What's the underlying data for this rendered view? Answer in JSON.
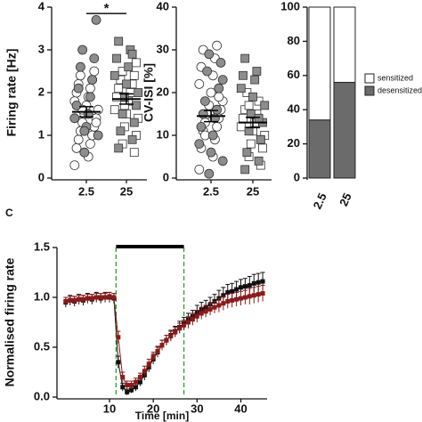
{
  "chart_data": [
    {
      "type": "strip",
      "y_label": "Firing rate [Hz]",
      "categories": [
        "2.5",
        "25"
      ],
      "ylim": [
        0,
        4
      ],
      "yticks": [
        0,
        1,
        2,
        3,
        4
      ],
      "series": [
        {
          "marker": "circle",
          "color": "#ffffff",
          "values": [
            [
              0.3,
              0.5,
              0.7,
              0.8,
              0.9,
              1.0,
              1.1,
              1.2,
              1.3,
              1.4,
              1.5,
              1.6,
              1.7,
              1.8,
              1.9,
              2.0,
              2.1,
              2.2,
              2.3,
              2.4,
              2.5,
              1.6,
              1.3
            ],
            []
          ]
        },
        {
          "marker": "circle",
          "color": "#8c8c8c",
          "values": [
            [
              0.6,
              1.0,
              1.2,
              1.4,
              1.5,
              1.7,
              1.9,
              2.1,
              2.3,
              2.6,
              2.8,
              3.0,
              3.7,
              1.1
            ],
            []
          ]
        },
        {
          "marker": "square",
          "color": "#ffffff",
          "values": [
            [],
            [
              0.6,
              0.8,
              1.0,
              1.2,
              1.4,
              1.5,
              1.6,
              1.8,
              1.9,
              2.0,
              2.1,
              2.2,
              2.3,
              2.4,
              2.5,
              2.7,
              1.7
            ]
          ]
        },
        {
          "marker": "square",
          "color": "#8c8c8c",
          "values": [
            [],
            [
              0.7,
              0.9,
              1.1,
              1.3,
              1.5,
              1.7,
              1.9,
              2.0,
              2.2,
              2.4,
              2.6,
              2.8,
              3.0,
              3.2,
              2.9
            ]
          ]
        }
      ],
      "mean": [
        1.55,
        1.85
      ],
      "sem": [
        0.12,
        0.12
      ],
      "annotation": {
        "text": "*",
        "y": 3.85
      }
    },
    {
      "type": "strip",
      "y_label": "CV-ISI [%]",
      "categories": [
        "2.5",
        "25"
      ],
      "ylim": [
        0,
        40
      ],
      "yticks": [
        0,
        10,
        20,
        30,
        40
      ],
      "series": [
        {
          "marker": "circle",
          "color": "#ffffff",
          "values": [
            [
              2,
              5,
              7,
              9,
              11,
              12,
              13,
              14,
              15,
              16,
              17,
              18,
              20,
              22,
              24,
              26,
              28,
              30,
              31,
              10,
              19
            ],
            []
          ]
        },
        {
          "marker": "circle",
          "color": "#8c8c8c",
          "values": [
            [
              1,
              4,
              6,
              8,
              10,
              12,
              14,
              15,
              16,
              18,
              21,
              25,
              27,
              29,
              23
            ],
            []
          ]
        },
        {
          "marker": "square",
          "color": "#ffffff",
          "values": [
            [],
            [
              3,
              5,
              7,
              8,
              10,
              11,
              12,
              13,
              14,
              15,
              16,
              18,
              20,
              9,
              17
            ]
          ]
        },
        {
          "marker": "square",
          "color": "#8c8c8c",
          "values": [
            [],
            [
              2,
              4,
              6,
              9,
              11,
              13,
              15,
              17,
              19,
              21,
              23,
              24,
              25,
              28,
              14
            ]
          ]
        }
      ],
      "mean": [
        14.5,
        13
      ],
      "sem": [
        1.3,
        1.2
      ]
    },
    {
      "type": "stacked_bar",
      "categories": [
        "2.5",
        "25"
      ],
      "ylim": [
        0,
        100
      ],
      "yticks": [
        0,
        20,
        40,
        60,
        80,
        100
      ],
      "legend": "right",
      "series": [
        {
          "name": "desensitized",
          "color": "#6b6b6b",
          "values": [
            34,
            56
          ]
        },
        {
          "name": "sensitized",
          "color": "#ffffff",
          "values": [
            66,
            44
          ]
        }
      ]
    },
    {
      "type": "line",
      "panel_label": "C",
      "y_label": "Normalised firing rate",
      "x_label": "Time [min]",
      "xlim": [
        -2,
        46
      ],
      "xticks": [
        10,
        20,
        30,
        40
      ],
      "ylim": [
        0,
        1.5
      ],
      "yticks": [
        {
          "value": 0,
          "label": "0.0"
        },
        0.5,
        {
          "value": 1,
          "label": "1.0"
        },
        1.5
      ],
      "interval": {
        "x": [
          11.5,
          27
        ],
        "color": "#2ca02c"
      },
      "x": [
        0,
        1,
        2,
        3,
        4,
        5,
        6,
        7,
        8,
        9,
        10,
        11,
        12,
        13,
        14,
        15,
        16,
        17,
        18,
        19,
        20,
        21,
        22,
        23,
        24,
        25,
        26,
        27,
        28,
        29,
        30,
        31,
        32,
        33,
        34,
        35,
        36,
        37,
        38,
        39,
        40,
        41,
        42,
        43,
        44,
        45
      ],
      "series": [
        {
          "color": "#111111",
          "values": [
            0.95,
            0.97,
            0.96,
            0.98,
            0.97,
            0.99,
            0.98,
            1.0,
            0.99,
            1.0,
            1.0,
            0.99,
            0.35,
            0.1,
            0.05,
            0.07,
            0.1,
            0.15,
            0.22,
            0.3,
            0.38,
            0.45,
            0.52,
            0.57,
            0.62,
            0.66,
            0.7,
            0.74,
            0.78,
            0.81,
            0.85,
            0.88,
            0.9,
            0.93,
            0.96,
            0.99,
            1.02,
            1.05,
            1.06,
            1.08,
            1.1,
            1.11,
            1.12,
            1.14,
            1.15,
            1.16
          ],
          "errors": [
            0.05,
            0.05,
            0.05,
            0.05,
            0.05,
            0.05,
            0.05,
            0.05,
            0.05,
            0.05,
            0.05,
            0.05,
            0.06,
            0.04,
            0.03,
            0.03,
            0.04,
            0.04,
            0.05,
            0.05,
            0.05,
            0.05,
            0.05,
            0.05,
            0.05,
            0.05,
            0.06,
            0.06,
            0.06,
            0.06,
            0.07,
            0.07,
            0.07,
            0.07,
            0.07,
            0.08,
            0.08,
            0.08,
            0.08,
            0.08,
            0.08,
            0.08,
            0.09,
            0.09,
            0.09,
            0.09
          ]
        },
        {
          "color": "#8b1a1a",
          "values": [
            0.96,
            0.97,
            0.97,
            0.98,
            0.98,
            0.99,
            0.99,
            1.0,
            1.0,
            1.0,
            1.01,
            1.0,
            0.6,
            0.2,
            0.12,
            0.12,
            0.15,
            0.2,
            0.26,
            0.33,
            0.4,
            0.46,
            0.52,
            0.57,
            0.61,
            0.65,
            0.69,
            0.72,
            0.75,
            0.78,
            0.81,
            0.84,
            0.86,
            0.88,
            0.9,
            0.92,
            0.94,
            0.96,
            0.97,
            0.98,
            0.99,
            1.0,
            1.01,
            1.02,
            1.03,
            1.04
          ],
          "errors": [
            0.04,
            0.04,
            0.04,
            0.04,
            0.04,
            0.04,
            0.04,
            0.04,
            0.04,
            0.04,
            0.04,
            0.04,
            0.06,
            0.05,
            0.04,
            0.04,
            0.04,
            0.04,
            0.05,
            0.05,
            0.05,
            0.05,
            0.05,
            0.05,
            0.05,
            0.05,
            0.05,
            0.05,
            0.06,
            0.06,
            0.06,
            0.06,
            0.06,
            0.06,
            0.06,
            0.07,
            0.07,
            0.07,
            0.07,
            0.07,
            0.07,
            0.07,
            0.08,
            0.08,
            0.08,
            0.08
          ]
        }
      ]
    }
  ]
}
